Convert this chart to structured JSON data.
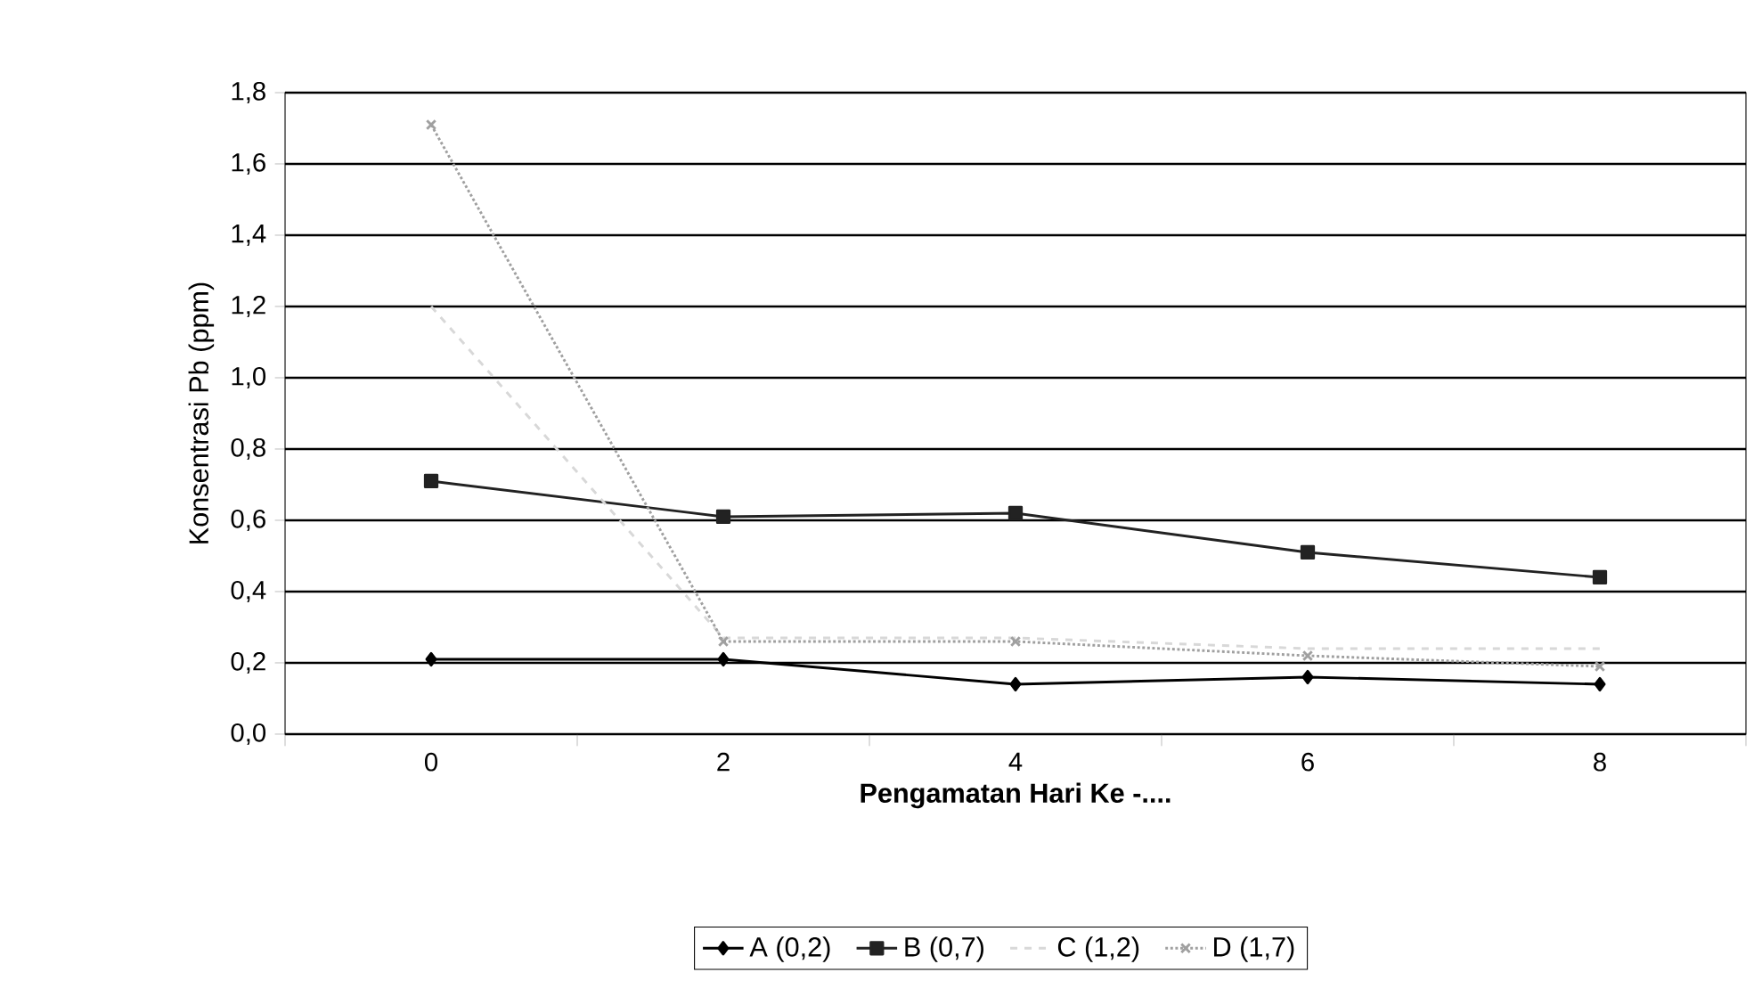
{
  "chart_data": {
    "type": "line",
    "xlabel": "Pengamatan Hari Ke -....",
    "ylabel": "Konsentrasi Pb (ppm)",
    "categories": [
      "0",
      "2",
      "4",
      "6",
      "8"
    ],
    "series": [
      {
        "name": "A (0,2)",
        "color": "#000000",
        "values": [
          0.21,
          0.21,
          0.14,
          0.16,
          0.14
        ],
        "marker": "diamond",
        "line_style": "solid"
      },
      {
        "name": "B (0,7)",
        "color": "#222222",
        "values": [
          0.71,
          0.61,
          0.62,
          0.51,
          0.44
        ],
        "marker": "square",
        "line_style": "solid"
      },
      {
        "name": "C (1,2)",
        "color": "#d8d8d8",
        "values": [
          1.2,
          0.27,
          0.27,
          0.24,
          0.24
        ],
        "marker": "none",
        "line_style": "dashed"
      },
      {
        "name": "D (1,7)",
        "color": "#a0a0a0",
        "values": [
          1.71,
          0.26,
          0.26,
          0.22,
          0.19
        ],
        "marker": "cross",
        "line_style": "dotted"
      }
    ],
    "ylim": [
      0,
      1.8
    ],
    "yticks": [
      {
        "value": 0,
        "label": "0,0"
      },
      {
        "value": 0.2,
        "label": "0,2"
      },
      {
        "value": 0.4,
        "label": "0,4"
      },
      {
        "value": 0.6,
        "label": "0,6"
      },
      {
        "value": 0.8,
        "label": "0,8"
      },
      {
        "value": 1.0,
        "label": "1,0"
      },
      {
        "value": 1.2,
        "label": "1,2"
      },
      {
        "value": 1.4,
        "label": "1,4"
      },
      {
        "value": 1.6,
        "label": "1,6"
      },
      {
        "value": 1.8,
        "label": "1,8"
      }
    ],
    "grid": "y",
    "legend": "bottom"
  }
}
